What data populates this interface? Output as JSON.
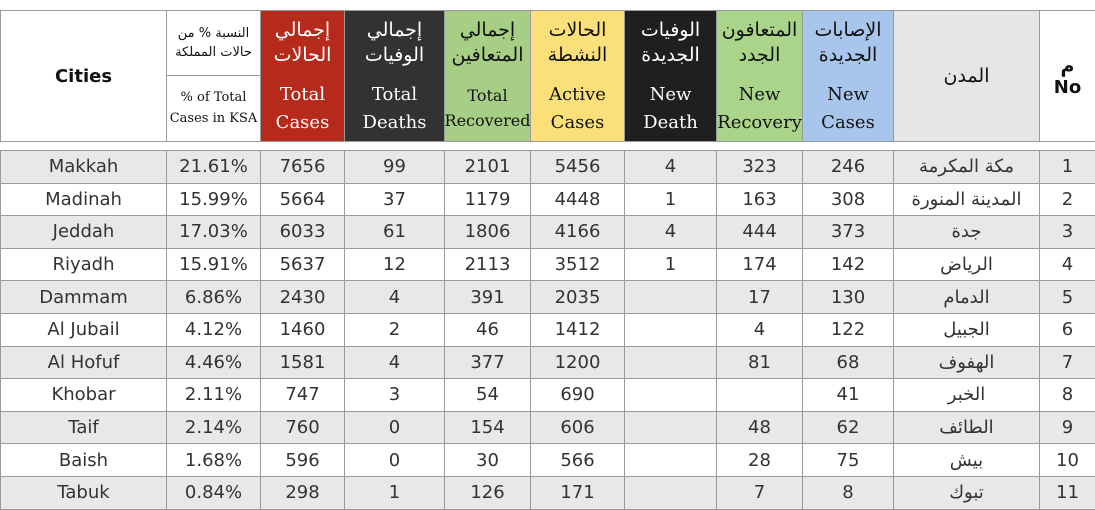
{
  "headers": {
    "cities": "Cities",
    "pct": {
      "ar": "النسبة % من حالات المملكة",
      "en": "% of Total Cases in KSA"
    },
    "total_cases": {
      "ar": "إجمالي الحالات",
      "en": "Total Cases"
    },
    "total_deaths": {
      "ar": "إجمالي الوفيات",
      "en": "Total Deaths"
    },
    "total_recovered": {
      "ar": "إجمالي المتعافين",
      "en": "Total Recovered"
    },
    "active_cases": {
      "ar": "الحالات النشطة",
      "en": "Active Cases"
    },
    "new_death": {
      "ar": "الوفيات الجديدة",
      "en": "New Death"
    },
    "new_recovery": {
      "ar": "المتعافون الجدد",
      "en": "New Recovery"
    },
    "new_cases": {
      "ar": "الإصابات الجديدة",
      "en": "New Cases"
    },
    "city_ar": "المدن",
    "no": {
      "ar": "م",
      "en": "No"
    }
  },
  "colors": {
    "total_cases": "#b52a1b",
    "total_deaths": "#323232",
    "total_recovered": "#a6cf85",
    "active_cases": "#fbe07a",
    "new_death": "#1f1f1f",
    "new_recovery": "#a9d48a",
    "new_cases": "#a8c6ec",
    "row_stripe": "#e8e8e8"
  },
  "rows": [
    {
      "city": "Makkah",
      "pct": "21.61%",
      "total_cases": "7656",
      "total_deaths": "99",
      "total_recovered": "2101",
      "active": "5456",
      "new_death": "4",
      "new_recovery": "323",
      "new_cases": "246",
      "city_ar": "مكة المكرمة",
      "no": "1"
    },
    {
      "city": "Madinah",
      "pct": "15.99%",
      "total_cases": "5664",
      "total_deaths": "37",
      "total_recovered": "1179",
      "active": "4448",
      "new_death": "1",
      "new_recovery": "163",
      "new_cases": "308",
      "city_ar": "المدينة المنورة",
      "no": "2"
    },
    {
      "city": "Jeddah",
      "pct": "17.03%",
      "total_cases": "6033",
      "total_deaths": "61",
      "total_recovered": "1806",
      "active": "4166",
      "new_death": "4",
      "new_recovery": "444",
      "new_cases": "373",
      "city_ar": "جدة",
      "no": "3"
    },
    {
      "city": "Riyadh",
      "pct": "15.91%",
      "total_cases": "5637",
      "total_deaths": "12",
      "total_recovered": "2113",
      "active": "3512",
      "new_death": "1",
      "new_recovery": "174",
      "new_cases": "142",
      "city_ar": "الرياض",
      "no": "4"
    },
    {
      "city": "Dammam",
      "pct": "6.86%",
      "total_cases": "2430",
      "total_deaths": "4",
      "total_recovered": "391",
      "active": "2035",
      "new_death": "",
      "new_recovery": "17",
      "new_cases": "130",
      "city_ar": "الدمام",
      "no": "5"
    },
    {
      "city": "Al Jubail",
      "pct": "4.12%",
      "total_cases": "1460",
      "total_deaths": "2",
      "total_recovered": "46",
      "active": "1412",
      "new_death": "",
      "new_recovery": "4",
      "new_cases": "122",
      "city_ar": "الجبيل",
      "no": "6"
    },
    {
      "city": "Al Hofuf",
      "pct": "4.46%",
      "total_cases": "1581",
      "total_deaths": "4",
      "total_recovered": "377",
      "active": "1200",
      "new_death": "",
      "new_recovery": "81",
      "new_cases": "68",
      "city_ar": "الهفوف",
      "no": "7"
    },
    {
      "city": "Khobar",
      "pct": "2.11%",
      "total_cases": "747",
      "total_deaths": "3",
      "total_recovered": "54",
      "active": "690",
      "new_death": "",
      "new_recovery": "",
      "new_cases": "41",
      "city_ar": "الخبر",
      "no": "8"
    },
    {
      "city": "Taif",
      "pct": "2.14%",
      "total_cases": "760",
      "total_deaths": "0",
      "total_recovered": "154",
      "active": "606",
      "new_death": "",
      "new_recovery": "48",
      "new_cases": "62",
      "city_ar": "الطائف",
      "no": "9"
    },
    {
      "city": "Baish",
      "pct": "1.68%",
      "total_cases": "596",
      "total_deaths": "0",
      "total_recovered": "30",
      "active": "566",
      "new_death": "",
      "new_recovery": "28",
      "new_cases": "75",
      "city_ar": "بيش",
      "no": "10"
    },
    {
      "city": "Tabuk",
      "pct": "0.84%",
      "total_cases": "298",
      "total_deaths": "1",
      "total_recovered": "126",
      "active": "171",
      "new_death": "",
      "new_recovery": "7",
      "new_cases": "8",
      "city_ar": "تبوك",
      "no": "11"
    }
  ]
}
